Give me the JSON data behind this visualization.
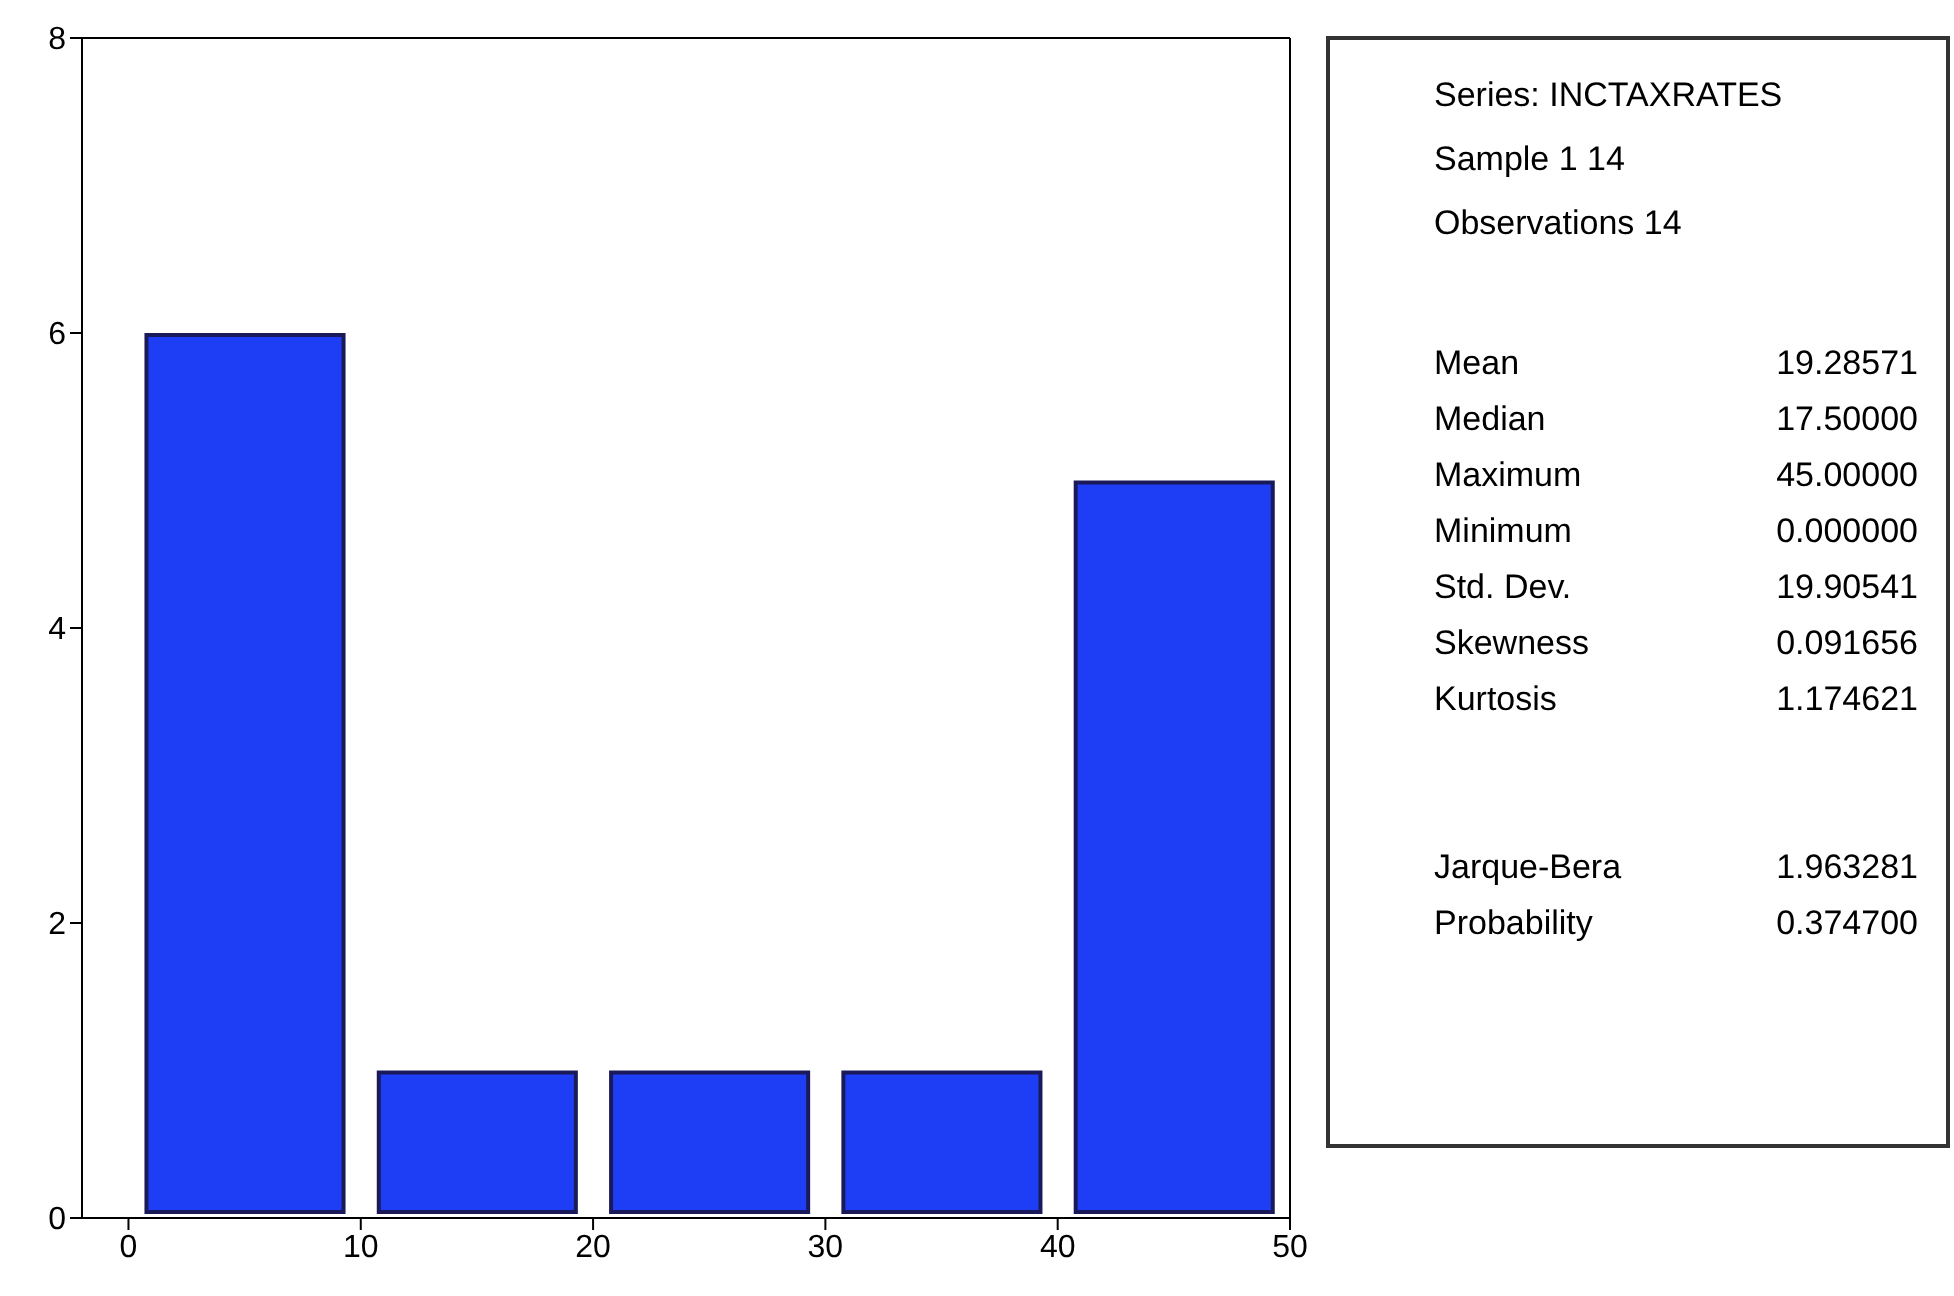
{
  "chart_data": [
    {
      "type": "histogram",
      "bins": [
        0,
        10,
        20,
        30,
        40,
        50
      ],
      "values": [
        6,
        1,
        1,
        1,
        5
      ],
      "color": "#1e3ef5",
      "xlim": [
        -2,
        50
      ],
      "xticks": [
        0,
        10,
        20,
        30,
        40,
        50
      ],
      "ylim": [
        0,
        8
      ],
      "yticks": [
        0,
        2,
        4,
        6,
        8
      ],
      "grid": false,
      "legend": false
    },
    {
      "type": "other",
      "annotations": [
        "Series: INCTAXRATES",
        "Sample 1 14",
        "Observations 14",
        "Mean",
        "19.28571",
        "Median",
        "17.50000",
        "Maximum",
        "45.00000",
        "Minimum",
        "0.000000",
        "Std. Dev.",
        "19.90541",
        "Skewness",
        "0.091656",
        "Kurtosis",
        "1.174621",
        "Jarque-Bera",
        "1.963281",
        "Probability",
        "0.374700"
      ]
    }
  ]
}
